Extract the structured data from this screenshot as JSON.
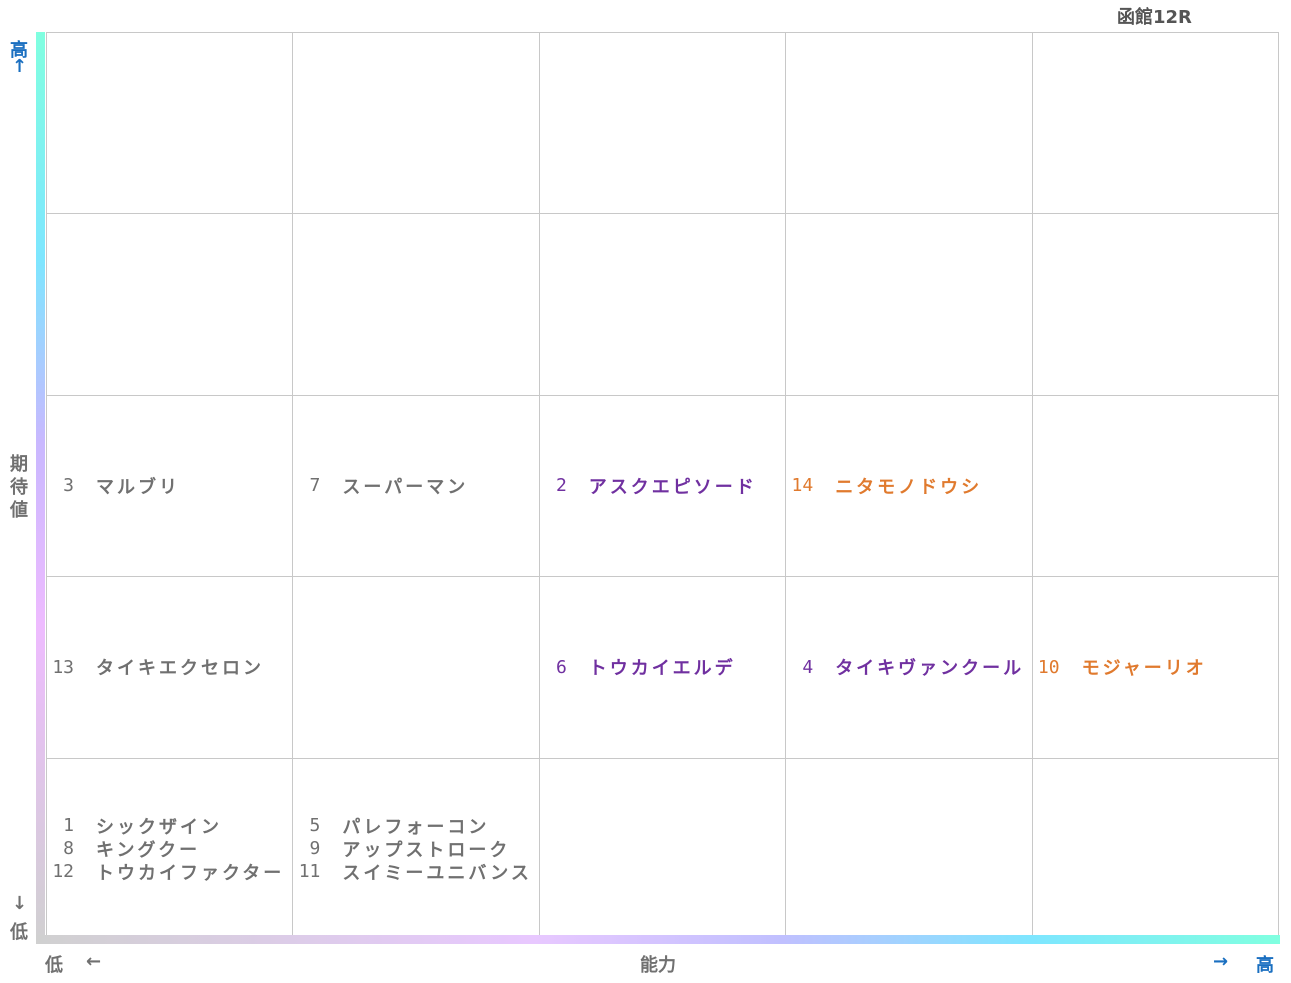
{
  "title": "函館12R",
  "y_axis": {
    "high": "高",
    "high_arrow": "↑",
    "label": "期待値",
    "low_arrow": "↓",
    "low": "低"
  },
  "x_axis": {
    "low": "低",
    "low_arrow": "←",
    "label": "能力",
    "high_arrow": "→",
    "high": "高"
  },
  "colors": {
    "gray": "#707070",
    "purple": "#7030a0",
    "orange": "#e07a2e"
  },
  "rows": [
    [
      [],
      [],
      [],
      [],
      []
    ],
    [
      [],
      [],
      [],
      [],
      []
    ],
    [
      [
        {
          "number": 3,
          "name": "マルブリ",
          "color": "gray"
        }
      ],
      [
        {
          "number": 7,
          "name": "スーパーマン",
          "color": "gray"
        }
      ],
      [
        {
          "number": 2,
          "name": "アスクエピソード",
          "color": "purple"
        }
      ],
      [
        {
          "number": 14,
          "name": "ニタモノドウシ",
          "color": "orange"
        }
      ],
      []
    ],
    [
      [
        {
          "number": 13,
          "name": "タイキエクセロン",
          "color": "gray"
        }
      ],
      [],
      [
        {
          "number": 6,
          "name": "トウカイエルデ",
          "color": "purple"
        }
      ],
      [
        {
          "number": 4,
          "name": "タイキヴァンクール",
          "color": "purple"
        }
      ],
      [
        {
          "number": 10,
          "name": "モジャーリオ",
          "color": "orange"
        }
      ]
    ],
    [
      [
        {
          "number": 1,
          "name": "シックザイン",
          "color": "gray"
        },
        {
          "number": 8,
          "name": "キングクー",
          "color": "gray"
        },
        {
          "number": 12,
          "name": "トウカイファクター",
          "color": "gray"
        }
      ],
      [
        {
          "number": 5,
          "name": "パレフォーコン",
          "color": "gray"
        },
        {
          "number": 9,
          "name": "アップストローク",
          "color": "gray"
        },
        {
          "number": 11,
          "name": "スイミーユニバンス",
          "color": "gray"
        }
      ],
      [],
      [],
      []
    ]
  ]
}
